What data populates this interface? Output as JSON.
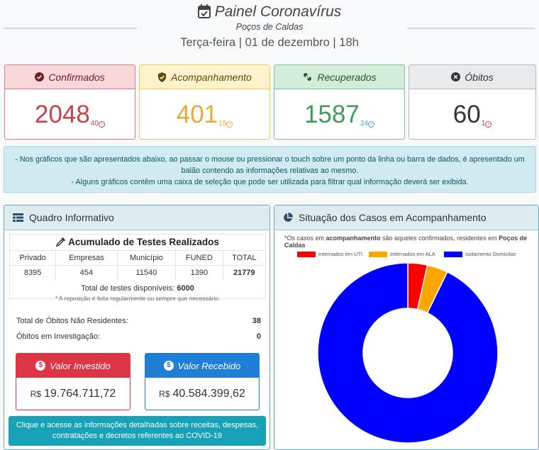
{
  "header": {
    "title": "Painel Coronavírus",
    "subtitle": "Poços de Caldas",
    "date_line": "Terça-feira | 01 de dezembro | 18h"
  },
  "stats": {
    "confirmados": {
      "label": "Confirmados",
      "value": "2048",
      "delta": "40"
    },
    "acompanhamento": {
      "label": "Acompanhamento",
      "value": "401",
      "delta": "15"
    },
    "recuperados": {
      "label": "Recuperados",
      "value": "1587",
      "delta": "24"
    },
    "obitos": {
      "label": "Óbitos",
      "value": "60",
      "delta": "1"
    }
  },
  "notice": {
    "line1": "- Nos gráficos que são apresentados abaixo, ao passar o mouse ou pressionar o touch sobre um ponto da linha ou barra de dados, é apresentado um",
    "line2": "balão contendo as informações relativas ao mesmo.",
    "line3": "- Alguns gráficos contêm uma caixa de seleção que pode ser utilizada para filtrar qual informação deverá ser exibida."
  },
  "quadro": {
    "title": "Quadro Informativo",
    "tests_title": "Acumulado de Testes Realizados",
    "columns": [
      "Privado",
      "Empresas",
      "Município",
      "FUNED",
      "TOTAL"
    ],
    "values": [
      "8395",
      "454",
      "11540",
      "1390",
      "21779"
    ],
    "available_label": "Total de testes disponíveis:",
    "available_value": "6000",
    "note": "* A reposição é feita regularmente ou sempre que necessário.",
    "obitos_nao_residentes_label": "Total de Óbitos Não Residentes:",
    "obitos_nao_residentes_value": "38",
    "obitos_investigacao_label": "Óbitos em Investigação:",
    "obitos_investigacao_value": "0",
    "valor_investido_label": "Valor Investido",
    "valor_investido_currency": "R$",
    "valor_investido_amount": "19.764.711,72",
    "valor_recebido_label": "Valor Recebido",
    "valor_recebido_currency": "R$",
    "valor_recebido_amount": "40.584.399,62",
    "cta_line1": "Clique e acesse as informações detalhadas sobre receitas, despesas,",
    "cta_line2": "contratações e decretos referentes ao COVID-19"
  },
  "situacao": {
    "title": "Situação dos Casos em Acompanhamento",
    "note_prefix": "*Os casos em ",
    "note_bold1": "acompanhamento",
    "note_middle": " são aqueles confirmados, residentes em ",
    "note_bold2": "Poços de Caldas"
  },
  "chart_data": {
    "type": "pie",
    "title": "",
    "series": [
      {
        "name": "Internados em UTI",
        "value": 14,
        "color": "#ff0000"
      },
      {
        "name": "Internados em ALA",
        "value": 15,
        "color": "#ffa500"
      },
      {
        "name": "Isolamento Domiciliar",
        "value": 372,
        "color": "#0000ff"
      }
    ],
    "legend_position": "top",
    "donut": true
  },
  "colors": {
    "danger": "#dc3545",
    "primary": "#1f7fd6",
    "info": "#17a2b8"
  }
}
